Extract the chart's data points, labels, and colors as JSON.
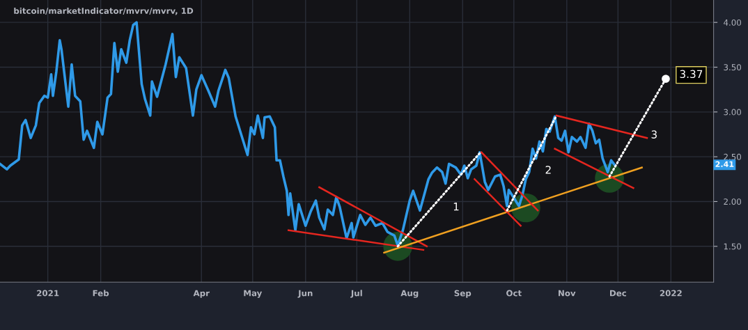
{
  "chart_data": {
    "type": "line",
    "title": "bitcoin/marketIndicator/mvrv/mvrv, 1D",
    "xlim": [
      "2020-12-04",
      "2022-01-26"
    ],
    "xticks": [
      {
        "value": "2021-01-01",
        "label": "2021"
      },
      {
        "value": "2021-02-01",
        "label": "Feb"
      },
      {
        "value": "2021-04-01",
        "label": "Apr"
      },
      {
        "value": "2021-05-01",
        "label": "May"
      },
      {
        "value": "2021-06-01",
        "label": "Jun"
      },
      {
        "value": "2021-07-01",
        "label": "Jul"
      },
      {
        "value": "2021-08-01",
        "label": "Aug"
      },
      {
        "value": "2021-09-01",
        "label": "Sep"
      },
      {
        "value": "2021-10-01",
        "label": "Oct"
      },
      {
        "value": "2021-11-01",
        "label": "Nov"
      },
      {
        "value": "2021-12-01",
        "label": "Dec"
      },
      {
        "value": "2022-01-01",
        "label": "2022"
      }
    ],
    "ylim": [
      1.1,
      4.25
    ],
    "yticks": [
      {
        "value": 1.5,
        "label": "1.50"
      },
      {
        "value": 2.0,
        "label": "2.00"
      },
      {
        "value": 2.5,
        "label": "2.50"
      },
      {
        "value": 3.0,
        "label": "3.00"
      },
      {
        "value": 3.5,
        "label": "3.50"
      },
      {
        "value": 4.0,
        "label": "4.00"
      }
    ],
    "grid": true,
    "line_style": "solid",
    "series": [
      {
        "type": "scatter",
        "color": "#1c4a22",
        "marker": "circle",
        "x": [
          "2021-07-25",
          "2021-10-08",
          "2021-11-26"
        ],
        "values": [
          1.5,
          1.93,
          2.26
        ]
      },
      {
        "color": "#2f9ae8",
        "x": [
          "2020-12-04",
          "2020-12-08",
          "2020-12-10",
          "2020-12-15",
          "2020-12-17",
          "2020-12-19",
          "2020-12-22",
          "2020-12-25",
          "2020-12-27",
          "2020-12-30",
          "2021-01-01",
          "2021-01-03",
          "2021-01-04",
          "2021-01-06",
          "2021-01-08",
          "2021-01-09",
          "2021-01-13",
          "2021-01-15",
          "2021-01-17",
          "2021-01-20",
          "2021-01-22",
          "2021-01-24",
          "2021-01-28",
          "2021-01-30",
          "2021-02-02",
          "2021-02-05",
          "2021-02-07",
          "2021-02-09",
          "2021-02-11",
          "2021-02-13",
          "2021-02-16",
          "2021-02-18",
          "2021-02-20",
          "2021-02-22",
          "2021-02-25",
          "2021-02-27",
          "2021-03-02",
          "2021-03-03",
          "2021-03-06",
          "2021-03-11",
          "2021-03-15",
          "2021-03-17",
          "2021-03-19",
          "2021-03-23",
          "2021-03-27",
          "2021-03-29",
          "2021-04-01",
          "2021-04-05",
          "2021-04-09",
          "2021-04-11",
          "2021-04-15",
          "2021-04-17",
          "2021-04-21",
          "2021-04-28",
          "2021-04-30",
          "2021-05-02",
          "2021-05-04",
          "2021-05-07",
          "2021-05-08",
          "2021-05-11",
          "2021-05-14",
          "2021-05-15",
          "2021-05-17",
          "2021-05-19",
          "2021-05-21",
          "2021-05-22",
          "2021-05-23",
          "2021-05-26",
          "2021-05-28",
          "2021-06-01",
          "2021-06-04",
          "2021-06-07",
          "2021-06-09",
          "2021-06-12",
          "2021-06-14",
          "2021-06-17",
          "2021-06-19",
          "2021-06-21",
          "2021-06-25",
          "2021-06-28",
          "2021-06-29",
          "2021-07-03",
          "2021-07-06",
          "2021-07-09",
          "2021-07-12",
          "2021-07-16",
          "2021-07-19",
          "2021-07-23",
          "2021-07-25",
          "2021-07-28",
          "2021-08-01",
          "2021-08-03",
          "2021-08-07",
          "2021-08-12",
          "2021-08-14",
          "2021-08-17",
          "2021-08-20",
          "2021-08-22",
          "2021-08-24",
          "2021-08-28",
          "2021-08-31",
          "2021-09-02",
          "2021-09-04",
          "2021-09-06",
          "2021-09-09",
          "2021-09-11",
          "2021-09-14",
          "2021-09-16",
          "2021-09-20",
          "2021-09-23",
          "2021-09-25",
          "2021-09-27",
          "2021-09-28",
          "2021-10-01",
          "2021-10-04",
          "2021-10-06",
          "2021-10-08",
          "2021-10-10",
          "2021-10-12",
          "2021-10-14",
          "2021-10-16",
          "2021-10-18",
          "2021-10-20",
          "2021-10-22",
          "2021-10-25",
          "2021-10-27",
          "2021-10-29",
          "2021-10-31",
          "2021-11-02",
          "2021-11-04",
          "2021-11-07",
          "2021-11-09",
          "2021-11-12",
          "2021-11-14",
          "2021-11-16",
          "2021-11-18",
          "2021-11-20",
          "2021-11-22",
          "2021-11-25",
          "2021-11-27",
          "2021-11-29"
        ],
        "values": [
          2.42,
          2.36,
          2.4,
          2.47,
          2.85,
          2.91,
          2.71,
          2.85,
          3.1,
          3.18,
          3.16,
          3.42,
          3.18,
          3.45,
          3.8,
          3.7,
          3.06,
          3.53,
          3.18,
          3.12,
          2.69,
          2.79,
          2.6,
          2.89,
          2.75,
          3.16,
          3.2,
          3.77,
          3.45,
          3.7,
          3.55,
          3.8,
          3.97,
          4.0,
          3.31,
          3.14,
          2.96,
          3.34,
          3.17,
          3.53,
          3.87,
          3.39,
          3.61,
          3.49,
          2.96,
          3.25,
          3.41,
          3.24,
          3.06,
          3.24,
          3.47,
          3.38,
          2.95,
          2.52,
          2.83,
          2.75,
          2.96,
          2.71,
          2.94,
          2.95,
          2.83,
          2.46,
          2.46,
          2.28,
          2.12,
          1.85,
          2.09,
          1.68,
          1.97,
          1.73,
          1.89,
          2.01,
          1.82,
          1.69,
          1.91,
          1.85,
          2.05,
          1.94,
          1.59,
          1.76,
          1.6,
          1.85,
          1.74,
          1.82,
          1.73,
          1.76,
          1.66,
          1.62,
          1.51,
          1.68,
          2.01,
          2.12,
          1.9,
          2.25,
          2.32,
          2.38,
          2.33,
          2.2,
          2.42,
          2.38,
          2.3,
          2.4,
          2.26,
          2.36,
          2.4,
          2.55,
          2.22,
          2.13,
          2.28,
          2.3,
          2.17,
          1.95,
          2.13,
          2.04,
          1.95,
          2.07,
          2.25,
          2.33,
          2.59,
          2.48,
          2.67,
          2.56,
          2.81,
          2.78,
          2.95,
          2.71,
          2.68,
          2.79,
          2.55,
          2.72,
          2.67,
          2.72,
          2.6,
          2.87,
          2.79,
          2.65,
          2.69,
          2.48,
          2.33,
          2.46,
          2.41
        ]
      },
      {
        "type": "line",
        "color": "#e5261f",
        "x": [
          "2021-05-22",
          "2021-08-09"
        ],
        "values": [
          1.68,
          1.46
        ]
      },
      {
        "type": "line",
        "color": "#e5261f",
        "x": [
          "2021-06-09",
          "2021-08-11"
        ],
        "values": [
          2.16,
          1.5
        ]
      },
      {
        "type": "line",
        "color": "#f0a020",
        "x": [
          "2021-07-17",
          "2021-12-15"
        ],
        "values": [
          1.43,
          2.38
        ]
      },
      {
        "type": "line",
        "color": "#ffffff",
        "line_style": "dotted",
        "x": [
          "2021-07-25",
          "2021-09-11"
        ],
        "values": [
          1.5,
          2.54
        ]
      },
      {
        "type": "line",
        "color": "#e5261f",
        "x": [
          "2021-09-08",
          "2021-10-05"
        ],
        "values": [
          2.25,
          1.73
        ]
      },
      {
        "type": "line",
        "color": "#e5261f",
        "x": [
          "2021-09-12",
          "2021-10-15"
        ],
        "values": [
          2.55,
          1.9
        ]
      },
      {
        "type": "line",
        "color": "#ffffff",
        "line_style": "dotted",
        "x": [
          "2021-09-27",
          "2021-10-26"
        ],
        "values": [
          1.9,
          2.96
        ]
      },
      {
        "type": "line",
        "color": "#e5261f",
        "x": [
          "2021-10-26",
          "2021-12-18"
        ],
        "values": [
          2.96,
          2.71
        ]
      },
      {
        "type": "line",
        "color": "#e5261f",
        "x": [
          "2021-10-25",
          "2021-12-10"
        ],
        "values": [
          2.59,
          2.15
        ]
      },
      {
        "type": "line",
        "color": "#ffffff",
        "line_style": "dotted",
        "x": [
          "2021-11-26",
          "2021-12-29"
        ],
        "values": [
          2.28,
          3.37
        ]
      },
      {
        "type": "scatter",
        "color": "#ffffff",
        "marker": "circle",
        "x": [
          "2021-12-29"
        ],
        "values": [
          3.37
        ]
      }
    ],
    "annotations": [
      "1",
      "2",
      "3",
      {
        "text": "3.37",
        "x": "2021-12-29",
        "y": 3.37
      },
      "2.41"
    ]
  }
}
